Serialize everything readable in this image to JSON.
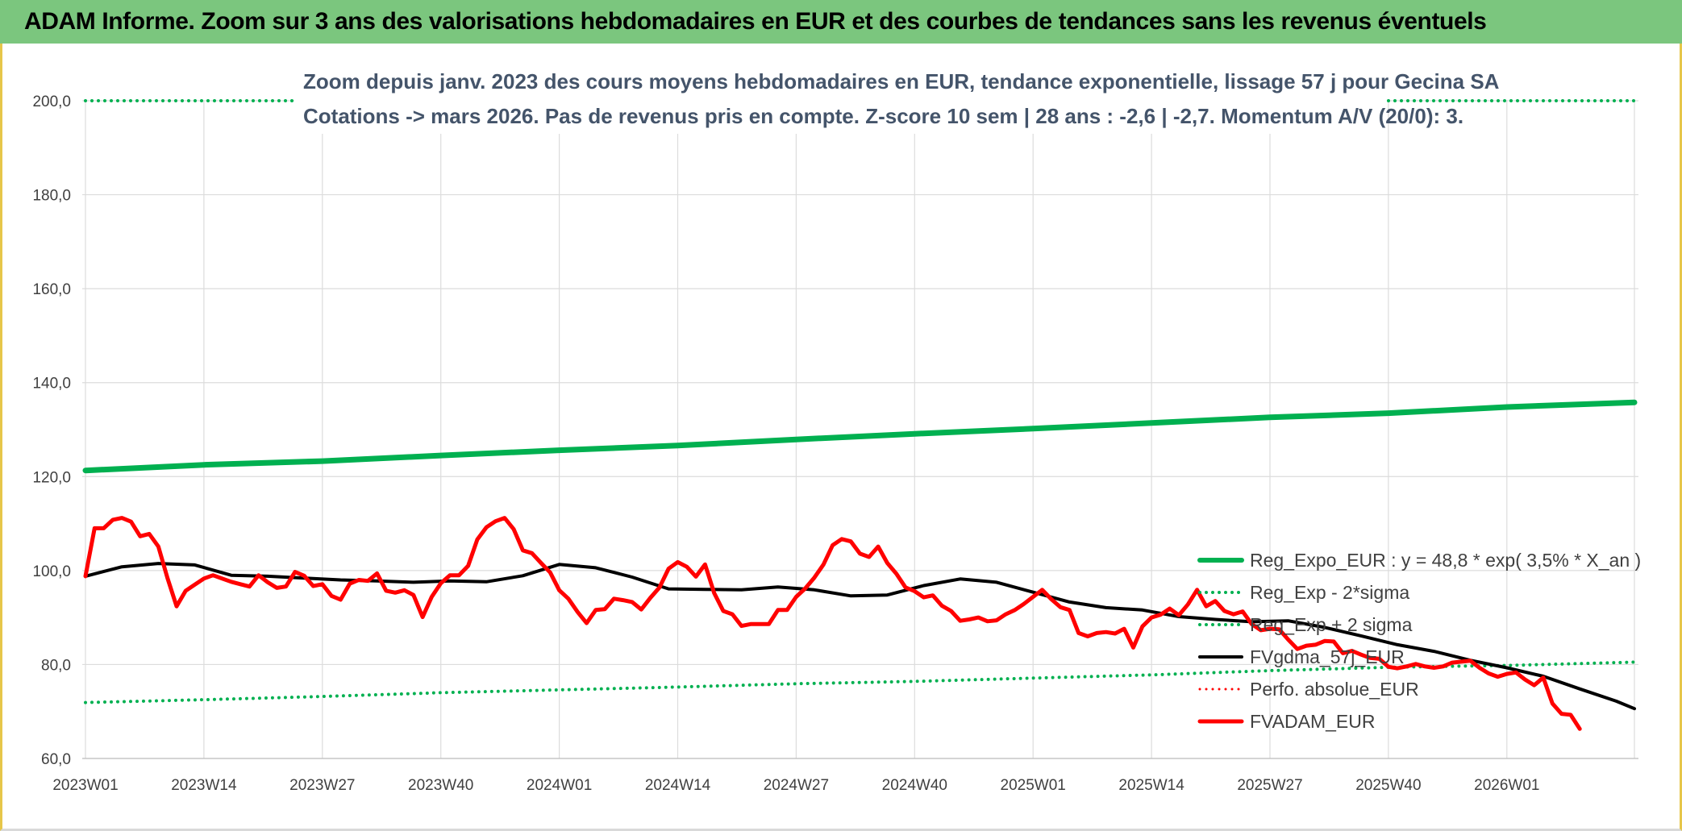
{
  "header": {
    "title": "ADAM Informe. Zoom sur 3 ans des valorisations hebdomadaires en EUR et des courbes de tendances sans les revenus éventuels"
  },
  "chart_data": {
    "type": "line",
    "subtitle_lines": [
      "Zoom depuis janv. 2023 des cours moyens hebdomadaires en EUR, tendance exponentielle, lissage 57 j pour Gecina SA",
      "Cotations -> mars 2026. Pas de revenus pris en compte. Z-score 10 sem | 28 ans : -2,6 | -2,7. Momentum A/V (20/0): 3."
    ],
    "ylim": [
      60,
      200
    ],
    "y_ticks": [
      "60,0",
      "80,0",
      "100,0",
      "120,0",
      "140,0",
      "160,0",
      "180,0",
      "200,0"
    ],
    "x_ticks": [
      "2023W01",
      "2023W14",
      "2023W27",
      "2023W40",
      "2024W01",
      "2024W14",
      "2024W27",
      "2024W40",
      "2025W01",
      "2025W14",
      "2025W27",
      "2025W40",
      "2026W01"
    ],
    "x_tick_index": [
      0,
      13,
      26,
      39,
      52,
      65,
      78,
      91,
      104,
      117,
      130,
      143,
      156
    ],
    "n_weeks": 171,
    "grid": true,
    "legend_position": "bottom-right",
    "series": [
      {
        "name": "Reg_Expo_EUR : y = 48,8 * exp( 3,5% *  X_an )",
        "color": "#00b050",
        "style": "solid",
        "width": 7,
        "values": [
          121.3,
          122.5,
          123.3,
          124.5,
          125.6,
          126.6,
          127.9,
          129.1,
          130.2,
          131.4,
          132.6,
          133.5,
          134.8,
          135.8
        ],
        "x_index": [
          0,
          13,
          26,
          39,
          52,
          65,
          78,
          91,
          104,
          117,
          130,
          143,
          156,
          170
        ]
      },
      {
        "name": "Reg_Exp - 2*sigma",
        "color": "#00b050",
        "style": "dotted",
        "width": 4,
        "values": [
          200,
          200
        ],
        "x_index": [
          0,
          170
        ]
      },
      {
        "name": "Reg_Exp + 2 sigma",
        "color": "#00b050",
        "style": "dotted",
        "width": 4,
        "values": [
          71.9,
          72.5,
          73.2,
          74.0,
          74.6,
          75.2,
          75.9,
          76.4,
          77.1,
          77.8,
          78.7,
          79.4,
          79.8,
          80.5
        ],
        "x_index": [
          0,
          13,
          26,
          39,
          52,
          65,
          78,
          91,
          104,
          117,
          130,
          143,
          156,
          170
        ]
      },
      {
        "name": "FVgdma_57j_EUR",
        "color": "#000000",
        "style": "solid",
        "width": 4,
        "values": [
          98.8,
          100.8,
          101.5,
          101.2,
          99.0,
          98.8,
          98.0,
          97.8,
          97.5,
          97.8,
          97.6,
          98.9,
          101.3,
          100.6,
          98.6,
          96.1,
          96.0,
          95.9,
          96.5,
          95.9,
          94.6,
          94.8,
          96.8,
          98.2,
          97.5,
          95.4,
          93.3,
          92.1,
          91.6,
          90.2,
          89.6,
          89.1,
          89.3,
          87.9,
          86.1,
          84.2,
          82.8,
          80.9,
          79.3,
          77.5,
          74.8,
          72.2,
          70.6
        ],
        "x_index": [
          0,
          4,
          8,
          12,
          16,
          20,
          28,
          32,
          36,
          40,
          44,
          48,
          52,
          56,
          60,
          64,
          68,
          72,
          76,
          80,
          84,
          88,
          92,
          96,
          100,
          104,
          108,
          112,
          116,
          120,
          124,
          128,
          132,
          136,
          140,
          144,
          148,
          152,
          156,
          160,
          164,
          168,
          170
        ]
      },
      {
        "name": "Perfo. absolue_EUR",
        "color": "#ff0000",
        "style": "dotted",
        "width": 3,
        "values": [],
        "x_index": []
      },
      {
        "name": "FVADAM_EUR",
        "color": "#ff0000",
        "style": "solid",
        "width": 5,
        "values": [
          98.8,
          109,
          109,
          110.8,
          111.2,
          110.4,
          107.3,
          107.8,
          105.1,
          98.4,
          92.4,
          95.7,
          97,
          98.3,
          99,
          98.3,
          97.6,
          97.1,
          96.6,
          99,
          97.5,
          96.3,
          96.6,
          99.7,
          98.9,
          96.7,
          97.1,
          94.6,
          93.8,
          97.2,
          98,
          97.8,
          99.4,
          95.7,
          95.3,
          95.8,
          94.8,
          90.1,
          94.4,
          97.3,
          99,
          99,
          101,
          106.6,
          109.2,
          110.5,
          111.2,
          108.8,
          104.3,
          103.7,
          101.6,
          99.6,
          95.8,
          94,
          91.2,
          88.8,
          91.6,
          91.8,
          94,
          93.7,
          93.3,
          91.7,
          94.2,
          96.4,
          100.4,
          101.8,
          100.8,
          98.7,
          101.3,
          95.2,
          91.4,
          90.7,
          88.2,
          88.6,
          88.6,
          88.6,
          91.6,
          91.6,
          94.4,
          96.2,
          98.5,
          101.3,
          105.4,
          106.7,
          106.2,
          103.6,
          102.9,
          105.1,
          101.6,
          99.3,
          96.4,
          95.6,
          94.3,
          94.7,
          92.5,
          91.4,
          89.3,
          89.6,
          90,
          89.2,
          89.4,
          90.7,
          91.6,
          92.9,
          94.4,
          95.9,
          93.9,
          92.2,
          91.6,
          86.7,
          86,
          86.7,
          86.9,
          86.6,
          87.6,
          83.6,
          88.1,
          90,
          90.6,
          91.9,
          90.5,
          92.8,
          95.9,
          92.4,
          93.5,
          91.4,
          90.7,
          91.3,
          88.6,
          87.3,
          87.6,
          87.5,
          85.3,
          83.3,
          84,
          84.2,
          85,
          84.9,
          82.4,
          82.9,
          82.1,
          81.4,
          81.2,
          79.5,
          79.2,
          79.6,
          80.1,
          79.6,
          79.3,
          79.6,
          80.4,
          80.6,
          80.8,
          79.3,
          78.1,
          77.4,
          78,
          78.3,
          76.8,
          75.6,
          77.2,
          71.7,
          69.5,
          69.3,
          66.3
        ]
      }
    ]
  }
}
